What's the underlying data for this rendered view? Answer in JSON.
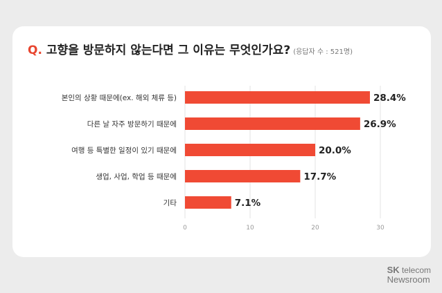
{
  "title": {
    "prefix": "Q.",
    "text": "고향을 방문하지 않는다면 그 이유는 무엇인가요?",
    "note": "(응답자 수 : 521명)"
  },
  "chart_data": {
    "type": "bar",
    "orientation": "horizontal",
    "categories": [
      "본인의 상황 때문에(ex. 해외 체류 등)",
      "다른 날 자주 방문하기 때문에",
      "여행 등 특별한 일정이 있기 때문에",
      "생업, 사업, 학업 등 때문에",
      "기타"
    ],
    "values": [
      28.4,
      26.9,
      20.0,
      17.7,
      7.1
    ],
    "value_labels": [
      "28.4%",
      "26.9%",
      "20.0%",
      "17.7%",
      "7.1%"
    ],
    "xlim": [
      0,
      30
    ],
    "xticks": [
      "0",
      "10",
      "20",
      "30"
    ],
    "grid": true,
    "bar_color": "#f04a34"
  },
  "brand": {
    "line1_bold": "SK",
    "line1_rest": " telecom",
    "line2": "Newsroom"
  }
}
